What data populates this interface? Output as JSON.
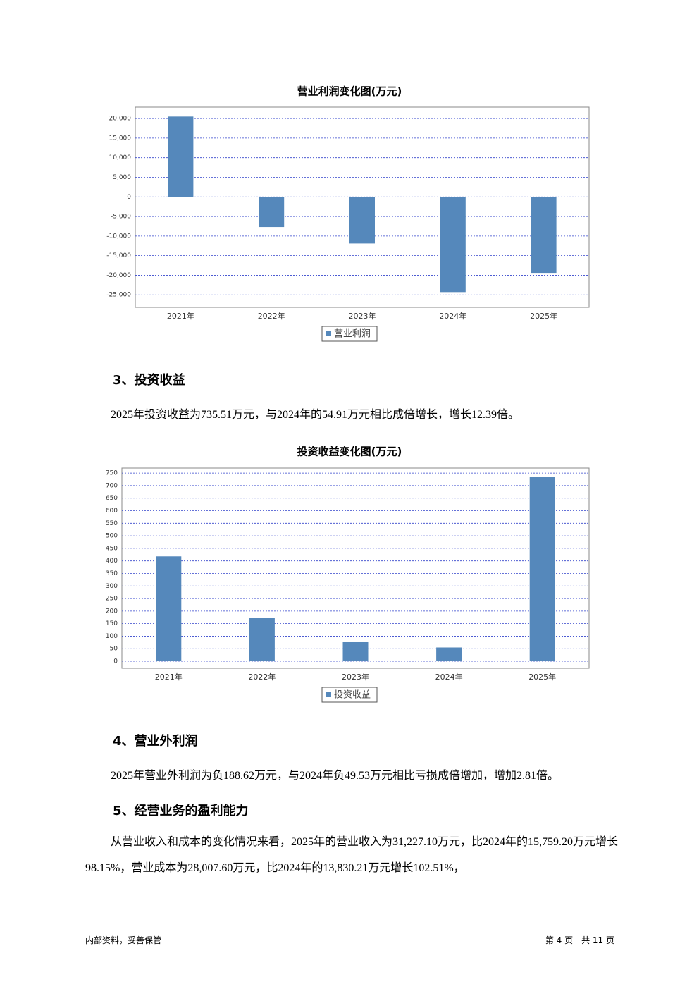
{
  "chart_data": [
    {
      "type": "bar",
      "title": "营业利润变化图(万元)",
      "categories": [
        "2021年",
        "2022年",
        "2023年",
        "2024年",
        "2025年"
      ],
      "series": [
        {
          "name": "营业利润",
          "color": "#5588bb",
          "values": [
            20500,
            -7700,
            -11900,
            -24300,
            -19400
          ]
        }
      ],
      "ylim": [
        -28200,
        22900
      ],
      "yticks": [
        {
          "value": -25000,
          "label": "-25,000"
        },
        {
          "value": -20000,
          "label": "-20,000"
        },
        {
          "value": -15000,
          "label": "-15,000"
        },
        {
          "value": -10000,
          "label": "-10,000"
        },
        {
          "value": -5000,
          "label": "-5,000"
        },
        0,
        {
          "value": 5000,
          "label": "5,000"
        },
        {
          "value": 10000,
          "label": "10,000"
        },
        {
          "value": 15000,
          "label": "15,000"
        },
        {
          "value": 20000,
          "label": "20,000"
        }
      ],
      "grid": true,
      "legend": "bottom"
    },
    {
      "type": "bar",
      "title": "投资收益变化图(万元)",
      "categories": [
        "2021年",
        "2022年",
        "2023年",
        "2024年",
        "2025年"
      ],
      "series": [
        {
          "name": "投资收益",
          "color": "#5588bb",
          "values": [
            418,
            174,
            76,
            54.91,
            735.51
          ]
        }
      ],
      "ylim": [
        -28,
        770
      ],
      "yticks": [
        0,
        50,
        100,
        150,
        200,
        250,
        300,
        350,
        400,
        450,
        500,
        550,
        600,
        650,
        700,
        750
      ],
      "grid": true,
      "legend": "bottom"
    }
  ],
  "sections": [
    {
      "heading": "3、投资收益",
      "paragraph": "2025年投资收益为735.51万元，与2024年的54.91万元相比成倍增长，增长12.39倍。"
    },
    {
      "heading": "4、营业外利润",
      "paragraph": "2025年营业外利润为负188.62万元，与2024年负49.53万元相比亏损成倍增加，增加2.81倍。"
    },
    {
      "heading": "5、经营业务的盈利能力",
      "paragraph": "从营业收入和成本的变化情况来看，2025年的营业收入为31,227.10万元，比2024年的15,759.20万元增长98.15%，营业成本为28,007.60万元，比2024年的13,830.21万元增长102.51%，"
    }
  ],
  "footer": {
    "left": "内部资料，妥善保管",
    "right": "第 4 页　共 11 页"
  }
}
